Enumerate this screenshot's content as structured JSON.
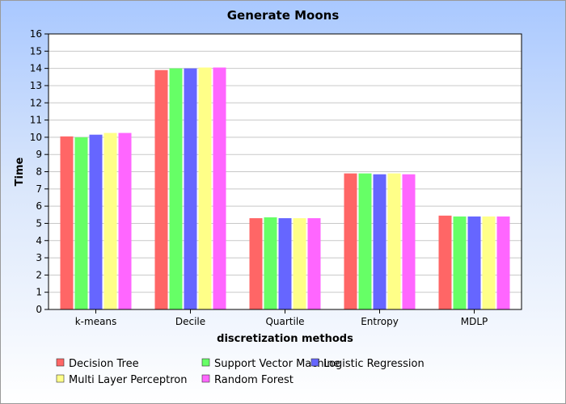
{
  "chart_data": {
    "type": "bar",
    "title": "Generate Moons",
    "xlabel": "discretization methods",
    "ylabel": "Time",
    "ylim": [
      0,
      16
    ],
    "yticks": [
      0,
      1,
      2,
      3,
      4,
      5,
      6,
      7,
      8,
      9,
      10,
      11,
      12,
      13,
      14,
      15,
      16
    ],
    "grid": true,
    "legend_position": "bottom",
    "categories": [
      "k-means",
      "Decile",
      "Quartile",
      "Entropy",
      "MDLP"
    ],
    "series": [
      {
        "name": "Decision Tree",
        "color": "#ff6666",
        "values": [
          10.05,
          13.9,
          5.3,
          7.9,
          5.45
        ]
      },
      {
        "name": "Support Vector Machine",
        "color": "#66ff66",
        "values": [
          10.0,
          14.0,
          5.35,
          7.9,
          5.4
        ]
      },
      {
        "name": "Logistic Regression",
        "color": "#6666ff",
        "values": [
          10.15,
          14.0,
          5.3,
          7.85,
          5.4
        ]
      },
      {
        "name": "Multi Layer Perceptron",
        "color": "#ffff88",
        "values": [
          10.25,
          14.05,
          5.3,
          7.9,
          5.4
        ]
      },
      {
        "name": "Random Forest",
        "color": "#ff66ff",
        "values": [
          10.25,
          14.05,
          5.3,
          7.85,
          5.4
        ]
      }
    ]
  }
}
